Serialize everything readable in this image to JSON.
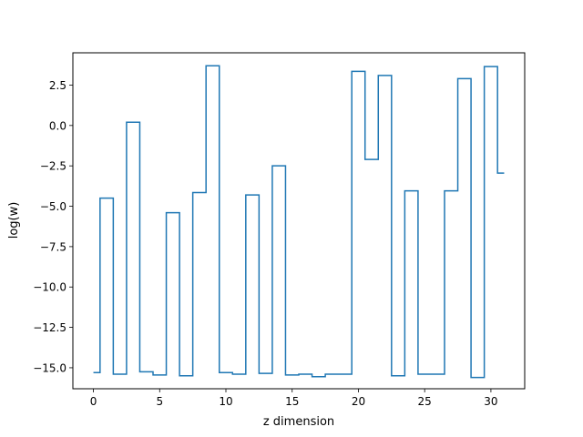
{
  "chart_data": {
    "type": "line",
    "drawstyle": "steps-mid",
    "title": "",
    "xlabel": "z dimension",
    "ylabel": "log(w)",
    "xlim": [
      -1.55,
      32.55
    ],
    "ylim": [
      -16.3,
      4.5
    ],
    "grid": false,
    "line_color": "#1f77b4",
    "x": [
      0,
      1,
      2,
      3,
      4,
      5,
      6,
      7,
      8,
      9,
      10,
      11,
      12,
      13,
      14,
      15,
      16,
      17,
      18,
      19,
      20,
      21,
      22,
      23,
      24,
      25,
      26,
      27,
      28,
      29,
      30,
      31
    ],
    "values": [
      -15.3,
      -4.5,
      -15.4,
      0.2,
      -15.25,
      -15.45,
      -5.4,
      -15.5,
      -4.15,
      3.7,
      -15.3,
      -15.4,
      -4.3,
      -15.35,
      -2.5,
      -15.45,
      -15.4,
      -15.55,
      -15.4,
      -15.4,
      3.35,
      -2.1,
      3.1,
      -15.5,
      -4.05,
      -15.4,
      -15.4,
      -4.05,
      2.9,
      -15.6,
      3.65,
      -2.95
    ],
    "xticks": [
      0,
      5,
      10,
      15,
      20,
      25,
      30
    ],
    "xtick_labels": [
      "0",
      "5",
      "10",
      "15",
      "20",
      "25",
      "30"
    ],
    "yticks": [
      2.5,
      0.0,
      -2.5,
      -5.0,
      -7.5,
      -10.0,
      -12.5,
      -15.0
    ],
    "ytick_labels": [
      "2.5",
      "0.0",
      "−2.5",
      "−5.0",
      "−7.5",
      "−10.0",
      "−12.5",
      "−15.0"
    ]
  }
}
